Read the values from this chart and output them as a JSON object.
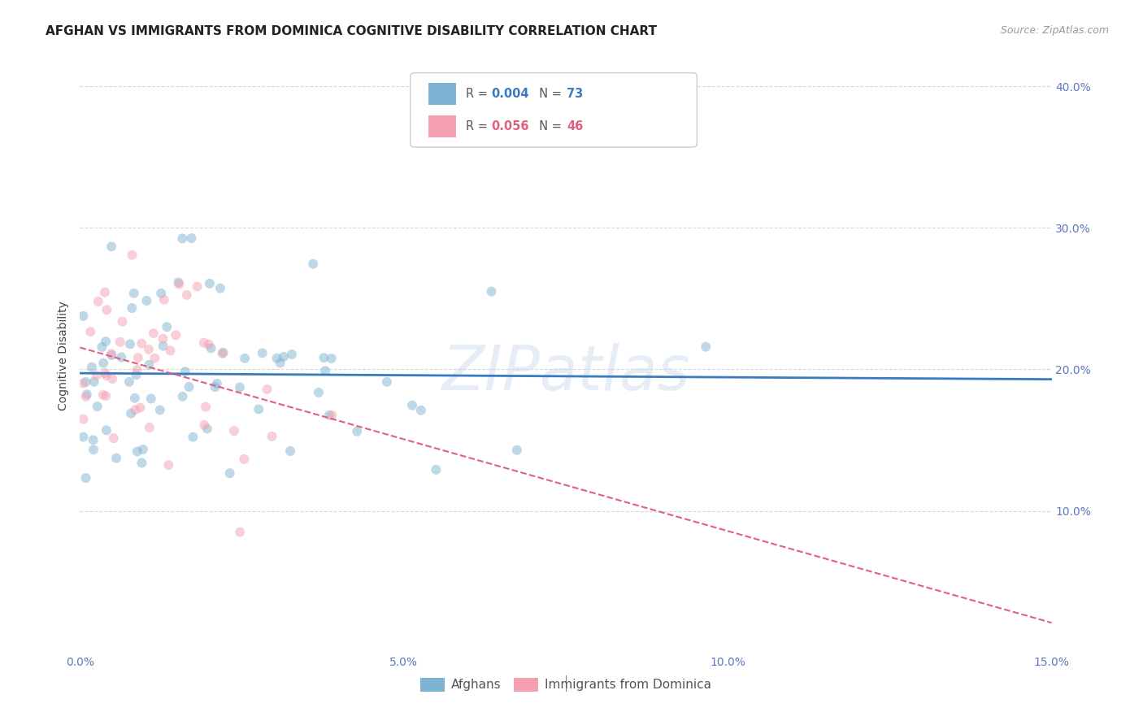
{
  "title": "AFGHAN VS IMMIGRANTS FROM DOMINICA COGNITIVE DISABILITY CORRELATION CHART",
  "source": "Source: ZipAtlas.com",
  "ylabel": "Cognitive Disability",
  "xlim": [
    0.0,
    0.15
  ],
  "ylim": [
    0.0,
    0.42
  ],
  "xticks": [
    0.0,
    0.05,
    0.1,
    0.15
  ],
  "yticks": [
    0.1,
    0.2,
    0.3,
    0.4
  ],
  "ytick_labels": [
    "10.0%",
    "20.0%",
    "30.0%",
    "40.0%"
  ],
  "xtick_labels": [
    "0.0%",
    "5.0%",
    "10.0%",
    "15.0%"
  ],
  "afghan_R": "0.004",
  "afghan_N": "73",
  "dominica_R": "0.056",
  "dominica_N": "46",
  "afghan_color": "#7fb3d3",
  "dominica_color": "#f4a0b0",
  "afghan_line_color": "#3a7bbf",
  "dominica_line_color": "#e06080",
  "background_color": "#ffffff",
  "grid_color": "#d0d8e8",
  "watermark": "ZIPatlas",
  "title_fontsize": 11,
  "axis_label_fontsize": 10,
  "tick_fontsize": 10,
  "source_fontsize": 9,
  "marker_size": 75,
  "marker_alpha": 0.5,
  "afghan_seed": 10,
  "dominica_seed": 20,
  "n_afghan": 73,
  "n_dominica": 46
}
